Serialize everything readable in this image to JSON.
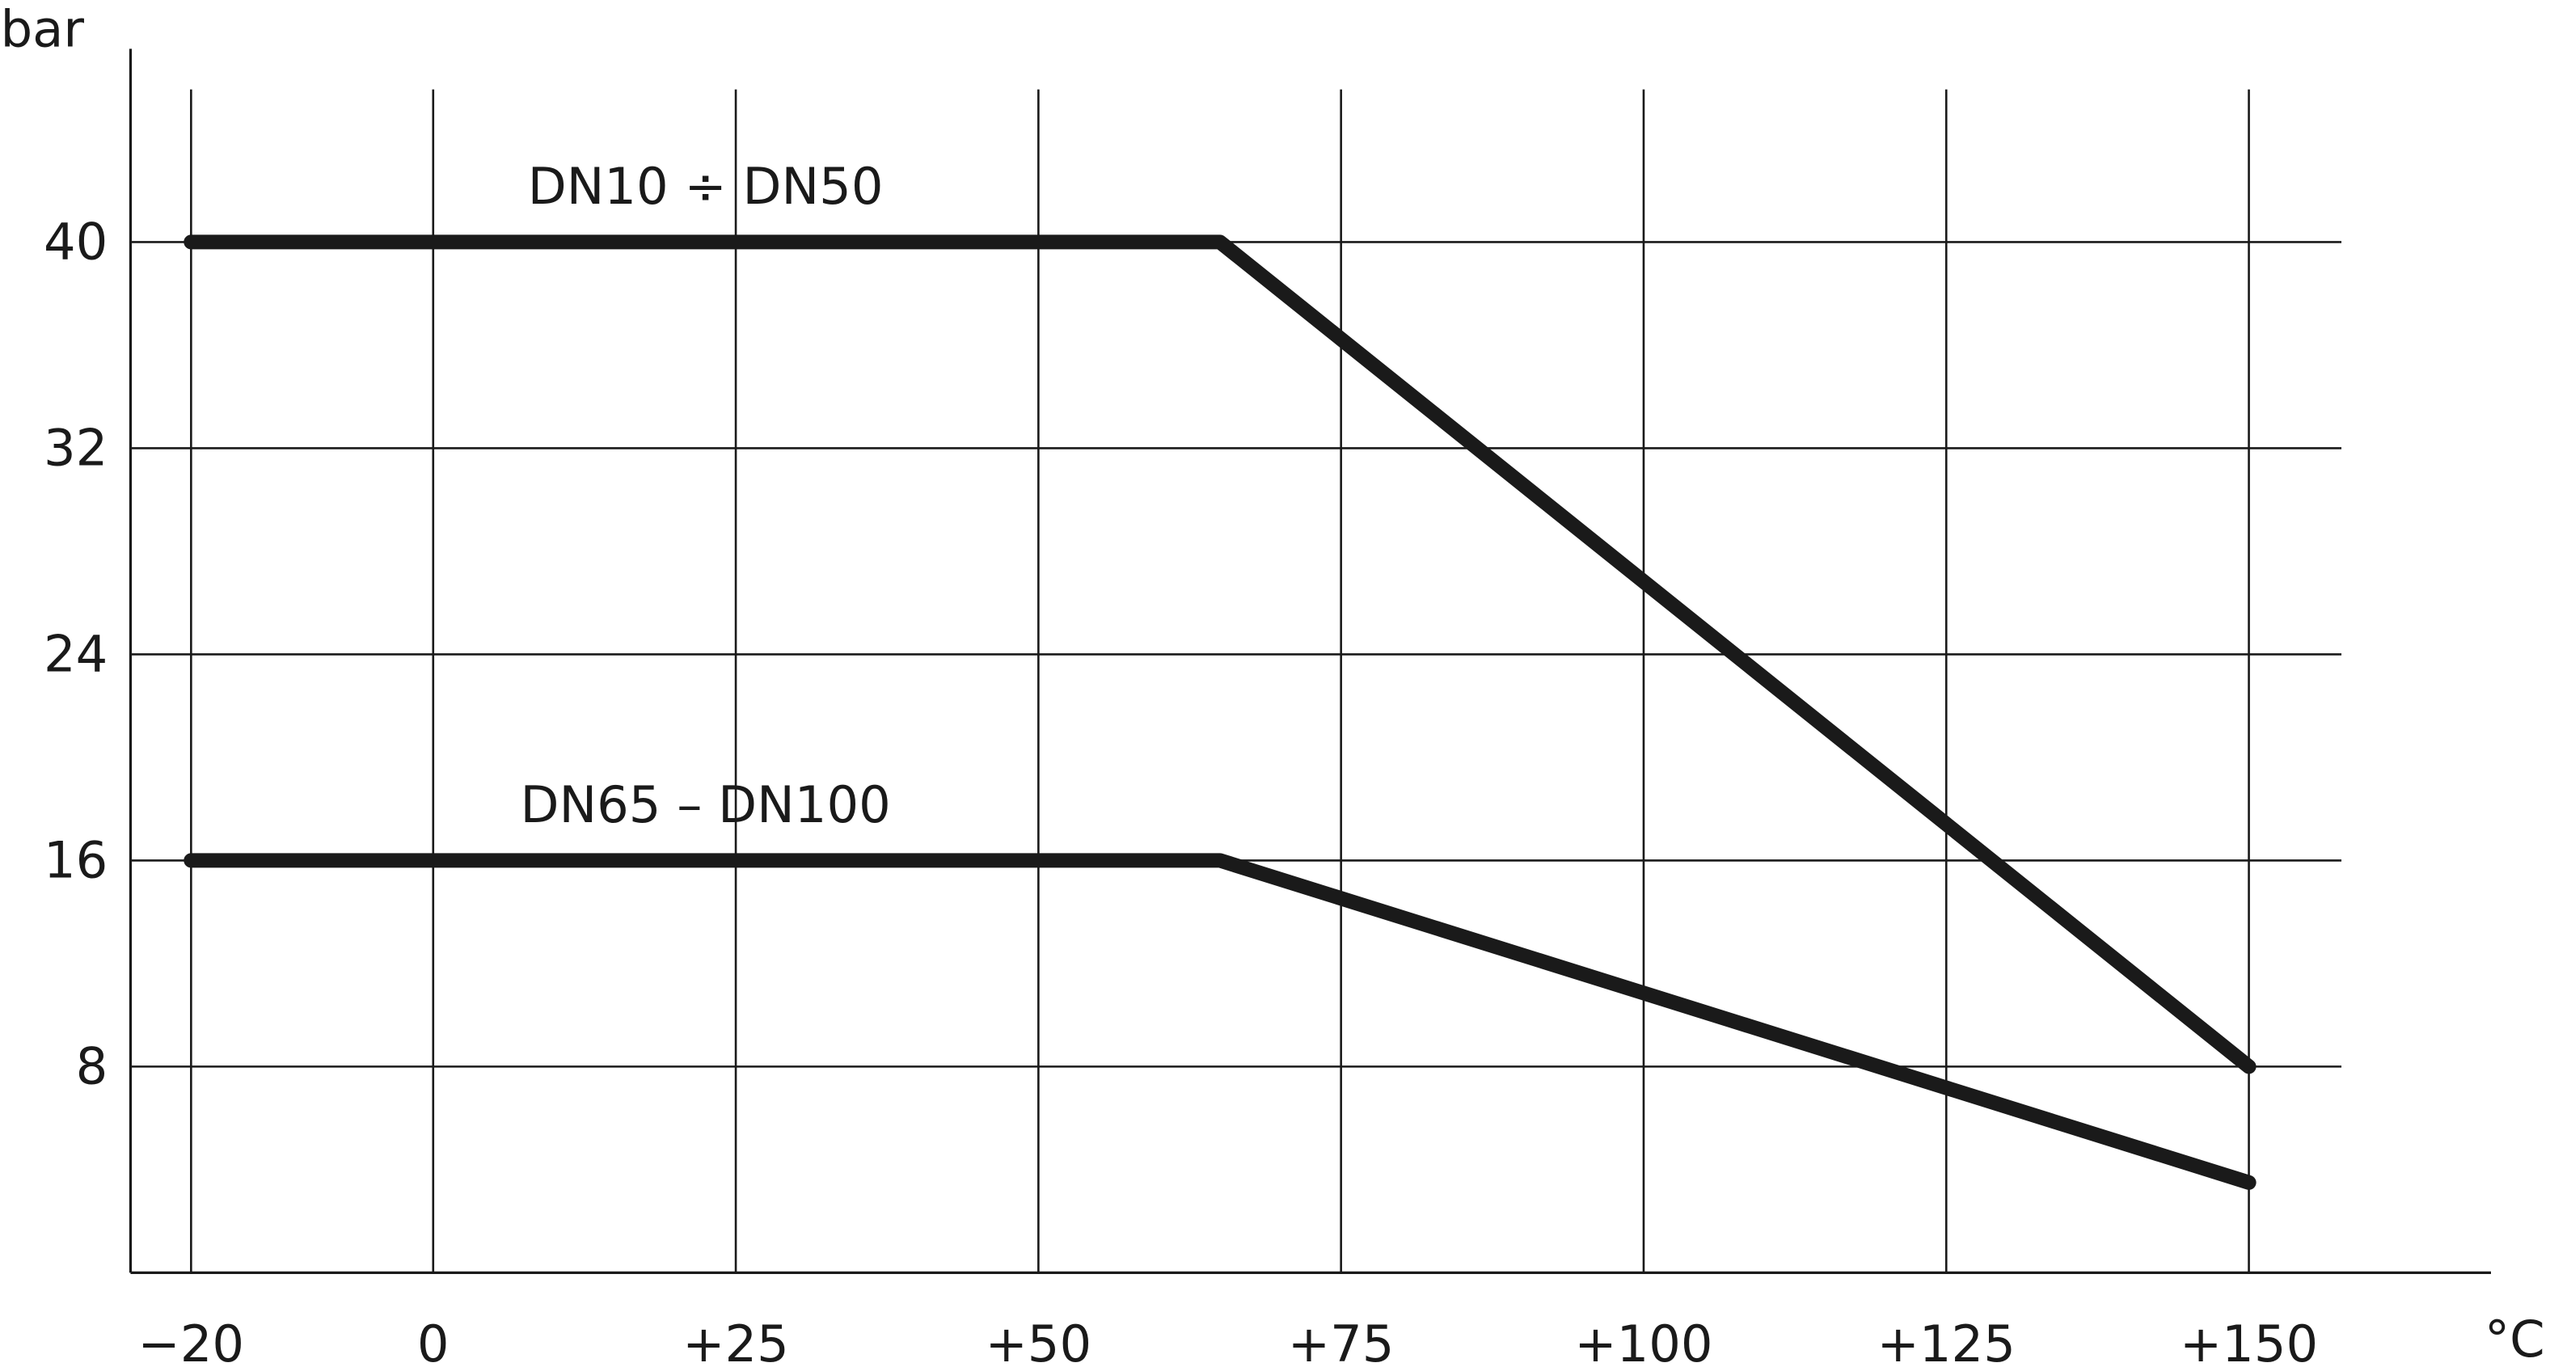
{
  "chart_data": {
    "type": "line",
    "y_label": "bar",
    "x_label": "°C",
    "x": [
      -20,
      65,
      150
    ],
    "series": [
      {
        "name": "DN10 ÷ DN50",
        "color": "#1a1a1a",
        "values": [
          40,
          40,
          8
        ]
      },
      {
        "name": "DN65 – DN100",
        "color": "#1a1a1a",
        "values": [
          16,
          16,
          3.5
        ]
      }
    ],
    "xlim": [
      -25,
      170
    ],
    "xticks": [
      {
        "value": -20,
        "label": "−20"
      },
      0,
      {
        "value": 25,
        "label": "+25"
      },
      {
        "value": 50,
        "label": "+50"
      },
      {
        "value": 75,
        "label": "+75"
      },
      {
        "value": 100,
        "label": "+100"
      },
      {
        "value": 125,
        "label": "+125"
      },
      {
        "value": 150,
        "label": "+150"
      }
    ],
    "ylim": [
      0,
      47.5
    ],
    "yticks": [
      8,
      16,
      24,
      32,
      40
    ],
    "grid": true
  }
}
